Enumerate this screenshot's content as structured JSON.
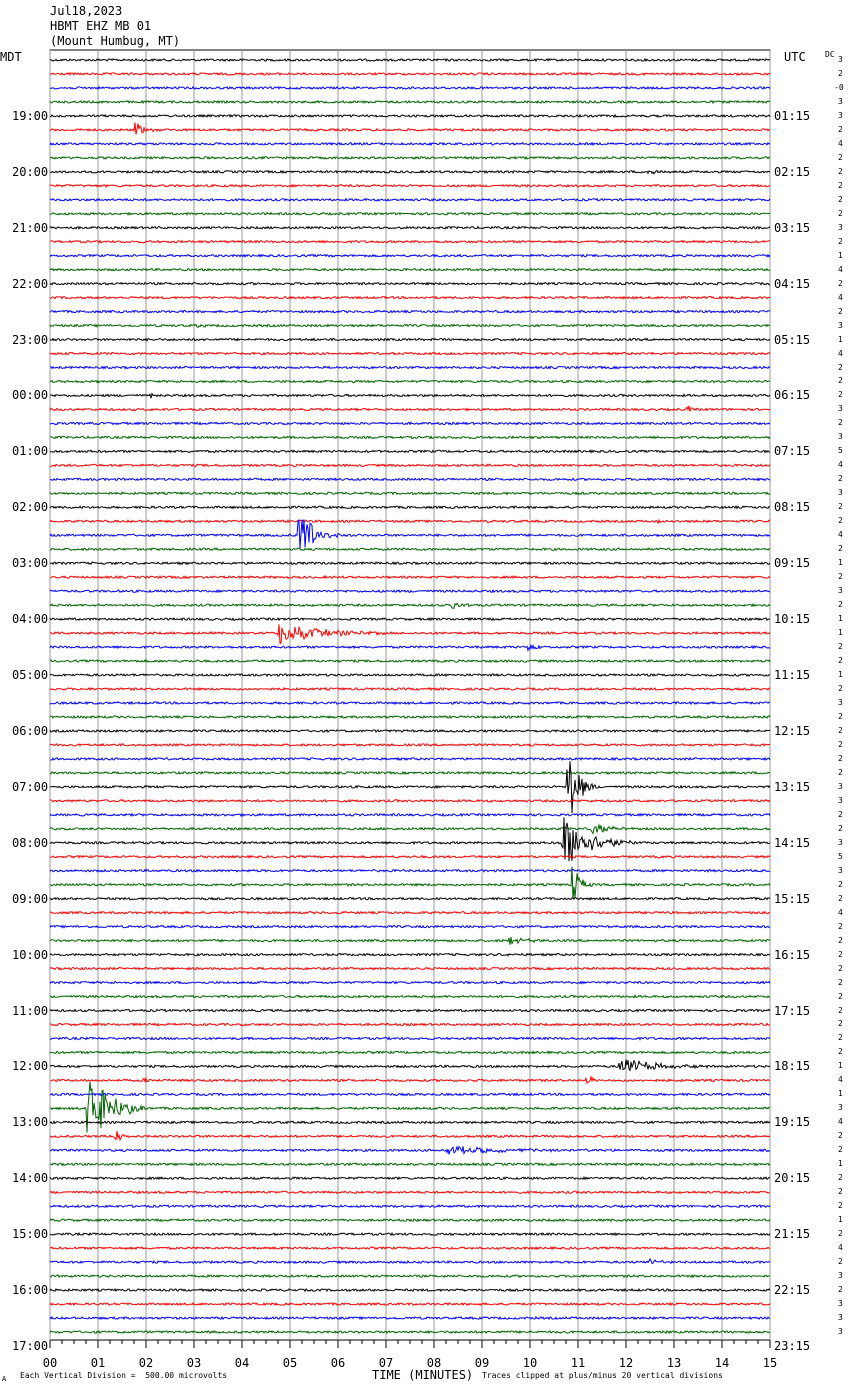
{
  "header": {
    "date": "Jul18,2023",
    "station": "HBMT EHZ MB 01",
    "location": "(Mount Humbug, MT)"
  },
  "left_timezone": "MDT",
  "right_timezone": "UTC",
  "dc_label": "DC",
  "footer": {
    "scale_note": "Each Vertical Division =  500.00 microvolts",
    "clip_note": "Traces clipped at plus/minus 20 vertical divisions",
    "corner_mark": "A"
  },
  "chart_data": {
    "type": "line",
    "xlabel": "TIME (MINUTES)",
    "x_range": [
      0,
      15
    ],
    "x_ticks": [
      "00",
      "01",
      "02",
      "03",
      "04",
      "05",
      "06",
      "07",
      "08",
      "09",
      "10",
      "11",
      "12",
      "13",
      "14",
      "15"
    ],
    "rows_per_hour": 4,
    "trace_colors": [
      "#000000",
      "#ff0000",
      "#0000ff",
      "#006400"
    ],
    "hour_labels_local": [
      "19:00",
      "20:00",
      "21:00",
      "22:00",
      "23:00",
      "00:00",
      "01:00",
      "02:00",
      "03:00",
      "04:00",
      "05:00",
      "06:00",
      "07:00",
      "08:00",
      "09:00",
      "10:00",
      "11:00",
      "12:00",
      "13:00",
      "14:00",
      "15:00",
      "16:00",
      "17:00"
    ],
    "hour_labels_utc": [
      "01:15",
      "02:15",
      "03:15",
      "04:15",
      "05:15",
      "06:15",
      "07:15",
      "08:15",
      "09:15",
      "10:15",
      "11:15",
      "12:15",
      "13:15",
      "14:15",
      "15:15",
      "16:15",
      "17:15",
      "18:15",
      "19:15",
      "20:15",
      "21:15",
      "22:15",
      "23:15"
    ],
    "dc_offsets": [
      "3",
      "2",
      "-0",
      "3",
      "3",
      "2",
      "4",
      "2",
      "2",
      "2",
      "2",
      "2",
      "3",
      "2",
      "1",
      "4",
      "2",
      "4",
      "2",
      "3",
      "1",
      "4",
      "2",
      "2",
      "2",
      "3",
      "2",
      "3",
      "5",
      "4",
      "2",
      "3",
      "2",
      "2",
      "4",
      "2",
      "1",
      "2",
      "3",
      "2",
      "1",
      "1",
      "2",
      "2",
      "1",
      "2",
      "3",
      "2",
      "2",
      "2",
      "2",
      "2",
      "3",
      "3",
      "2",
      "2",
      "3",
      "5",
      "3",
      "2",
      "2",
      "4",
      "2",
      "2",
      "2",
      "2",
      "2",
      "2",
      "2",
      "2",
      "2",
      "2",
      "1",
      "4",
      "1",
      "3",
      "4",
      "2",
      "2",
      "1",
      "2",
      "2",
      "2",
      "1",
      "2",
      "4",
      "2",
      "3",
      "2",
      "3",
      "3",
      "3"
    ],
    "events": [
      {
        "row": 5,
        "minute": 1.8,
        "amp": 8,
        "dur": 0.5
      },
      {
        "row": 8,
        "minute": 12.5,
        "amp": 3,
        "dur": 0.4
      },
      {
        "row": 19,
        "minute": 3.1,
        "amp": 2,
        "dur": 0.3
      },
      {
        "row": 24,
        "minute": 2.1,
        "amp": 2,
        "dur": 0.3
      },
      {
        "row": 25,
        "minute": 13.3,
        "amp": 6,
        "dur": 0.1
      },
      {
        "row": 33,
        "minute": 12.7,
        "amp": 2,
        "dur": 0.2
      },
      {
        "row": 34,
        "minute": 5.2,
        "amp": 28,
        "dur": 0.9
      },
      {
        "row": 39,
        "minute": 8.4,
        "amp": 5,
        "dur": 0.4
      },
      {
        "row": 41,
        "minute": 4.8,
        "amp": 12,
        "dur": 2.2
      },
      {
        "row": 42,
        "minute": 10.0,
        "amp": 4,
        "dur": 0.4
      },
      {
        "row": 52,
        "minute": 10.8,
        "amp": 40,
        "dur": 0.6
      },
      {
        "row": 55,
        "minute": 11.3,
        "amp": 6,
        "dur": 1.0
      },
      {
        "row": 56,
        "minute": 10.7,
        "amp": 28,
        "dur": 1.5
      },
      {
        "row": 59,
        "minute": 10.9,
        "amp": 20,
        "dur": 0.4
      },
      {
        "row": 63,
        "minute": 9.6,
        "amp": 4,
        "dur": 1.0
      },
      {
        "row": 72,
        "minute": 11.9,
        "amp": 9,
        "dur": 1.8
      },
      {
        "row": 73,
        "minute": 2.0,
        "amp": 3,
        "dur": 0.3
      },
      {
        "row": 73,
        "minute": 11.2,
        "amp": 4,
        "dur": 0.5
      },
      {
        "row": 75,
        "minute": 0.8,
        "amp": 40,
        "dur": 1.2
      },
      {
        "row": 77,
        "minute": 1.4,
        "amp": 10,
        "dur": 0.2
      },
      {
        "row": 78,
        "minute": 8.3,
        "amp": 4,
        "dur": 3.4
      },
      {
        "row": 86,
        "minute": 12.5,
        "amp": 3,
        "dur": 0.5
      }
    ]
  }
}
